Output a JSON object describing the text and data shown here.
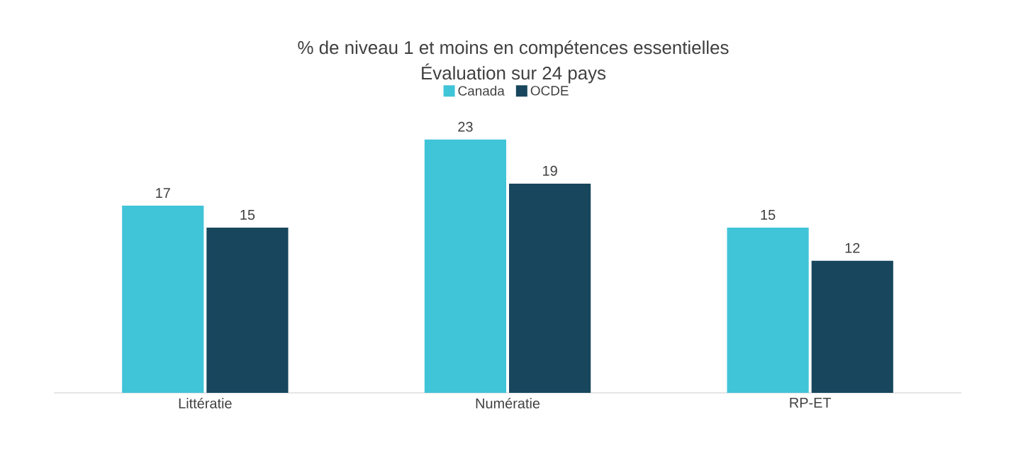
{
  "chart_data": {
    "type": "bar",
    "title": "% de niveau 1 et moins en compétences essentielles",
    "subtitle": "Évaluation sur 24 pays",
    "categories": [
      "Littératie",
      "Numératie",
      "RP-ET"
    ],
    "series": [
      {
        "name": "Canada",
        "color": "#40c4d8",
        "values": [
          17,
          23,
          15
        ]
      },
      {
        "name": "OCDE",
        "color": "#17465d",
        "values": [
          15,
          19,
          12
        ]
      }
    ],
    "data_labels": true,
    "legend": "top"
  }
}
